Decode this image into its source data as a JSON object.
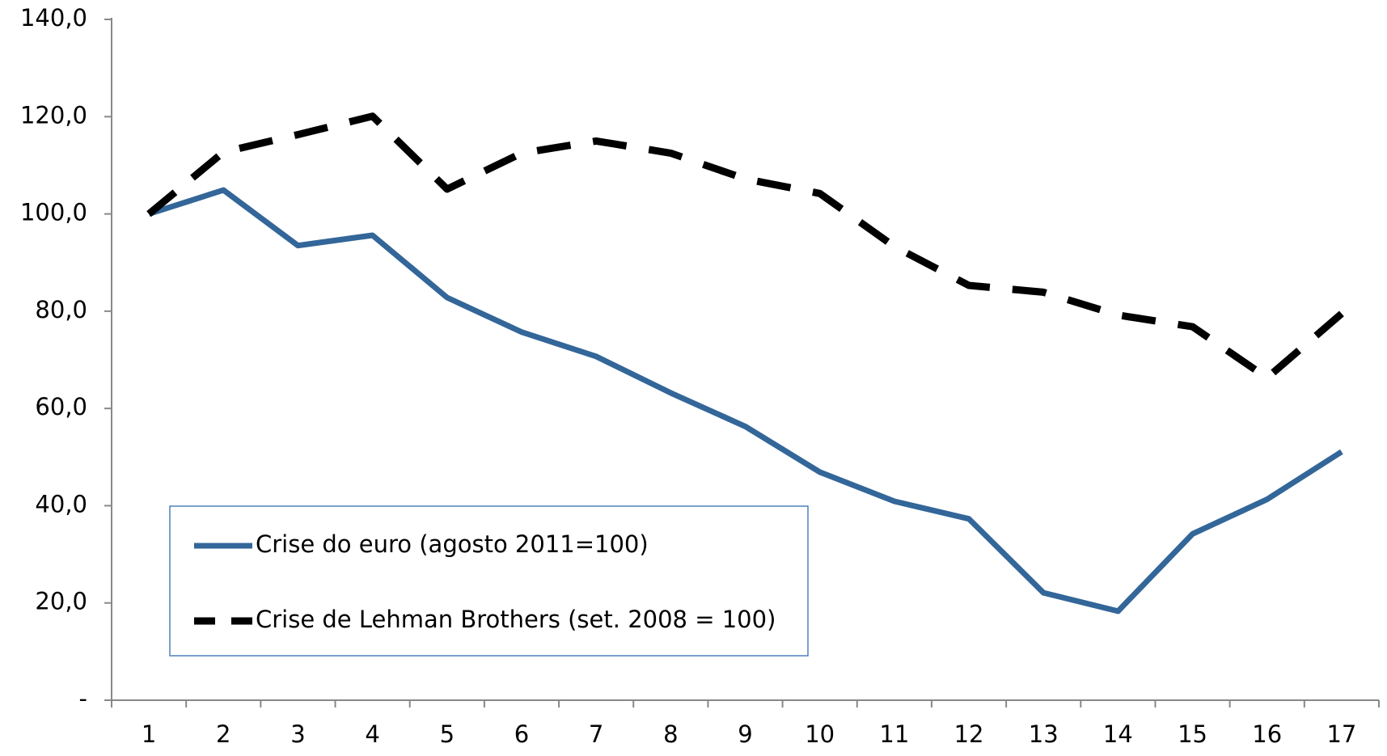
{
  "chart_data": {
    "type": "line",
    "categories": [
      "1",
      "2",
      "3",
      "4",
      "5",
      "6",
      "7",
      "8",
      "9",
      "10",
      "11",
      "12",
      "13",
      "14",
      "15",
      "16",
      "17"
    ],
    "series": [
      {
        "name": "Crise do euro (agosto 2011=100)",
        "color": "#336699",
        "dash": false,
        "values": [
          100,
          104.9,
          93.5,
          95.6,
          82.8,
          75.7,
          70.7,
          63.2,
          56.3,
          46.9,
          40.9,
          37.3,
          22.1,
          18.3,
          34.2,
          41.3,
          51.1
        ]
      },
      {
        "name": "Crise de Lehman Brothers (set. 2008 = 100)",
        "color": "#000000",
        "dash": true,
        "values": [
          100,
          112.7,
          116.3,
          120.1,
          105.1,
          112.5,
          115.0,
          112.5,
          107.2,
          104.2,
          93.3,
          85.3,
          83.9,
          79.2,
          76.8,
          66.3,
          79.5
        ]
      }
    ],
    "ylim": [
      0,
      140
    ],
    "yticks": [
      {
        "value": 0,
        "label": "-"
      },
      {
        "value": 20,
        "label": "20,0"
      },
      {
        "value": 40,
        "label": "40,0"
      },
      {
        "value": 60,
        "label": "60,0"
      },
      {
        "value": 80,
        "label": "80,0"
      },
      {
        "value": 100,
        "label": "100,0"
      },
      {
        "value": 120,
        "label": "120,0"
      },
      {
        "value": 140,
        "label": "140,0"
      }
    ],
    "grid": false,
    "legend": "lower left"
  }
}
